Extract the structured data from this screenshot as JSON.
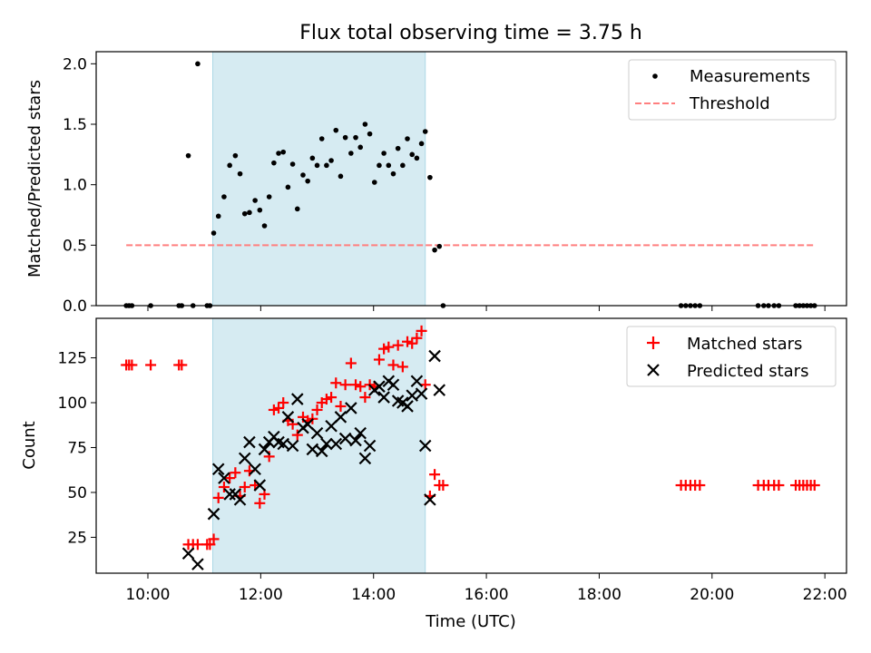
{
  "title": "Flux total observing time = 3.75 h",
  "colors": {
    "shade": "#add8e6",
    "measurement": "#000000",
    "threshold": "#ff7f7f",
    "matched": "#ff0000",
    "predicted": "#000000"
  },
  "chart_data": [
    {
      "type": "scatter",
      "ylabel": "Matched/Predicted stars",
      "xlim": [
        "09:05",
        "22:23"
      ],
      "ylim": [
        0,
        2.1
      ],
      "yticks": [
        0.0,
        0.5,
        1.0,
        1.5,
        2.0
      ],
      "ytick_labels": [
        "0.0",
        "0.5",
        "1.0",
        "1.5",
        "2.0"
      ],
      "grid": false,
      "legend_position": "upper right",
      "shaded_interval": [
        "11:09",
        "14:55"
      ],
      "series": [
        {
          "name": "Measurements",
          "marker": "dot",
          "points": [
            [
              "09:37",
              0
            ],
            [
              "09:40",
              0
            ],
            [
              "09:43",
              0
            ],
            [
              "10:03",
              0
            ],
            [
              "10:33",
              0
            ],
            [
              "10:36",
              0
            ],
            [
              "10:43",
              1.24
            ],
            [
              "10:48",
              0
            ],
            [
              "10:53",
              2.0
            ],
            [
              "11:03",
              0
            ],
            [
              "11:06",
              0
            ],
            [
              "11:10",
              0.6
            ],
            [
              "11:15",
              0.74
            ],
            [
              "11:21",
              0.9
            ],
            [
              "11:27",
              1.16
            ],
            [
              "11:33",
              1.24
            ],
            [
              "11:38",
              1.09
            ],
            [
              "11:43",
              0.76
            ],
            [
              "11:48",
              0.77
            ],
            [
              "11:54",
              0.87
            ],
            [
              "11:59",
              0.79
            ],
            [
              "12:04",
              0.66
            ],
            [
              "12:09",
              0.9
            ],
            [
              "12:14",
              1.18
            ],
            [
              "12:19",
              1.26
            ],
            [
              "12:24",
              1.27
            ],
            [
              "12:29",
              0.98
            ],
            [
              "12:34",
              1.17
            ],
            [
              "12:39",
              0.8
            ],
            [
              "12:45",
              1.08
            ],
            [
              "12:50",
              1.03
            ],
            [
              "12:55",
              1.22
            ],
            [
              "13:00",
              1.16
            ],
            [
              "13:05",
              1.38
            ],
            [
              "13:10",
              1.16
            ],
            [
              "13:15",
              1.2
            ],
            [
              "13:20",
              1.45
            ],
            [
              "13:25",
              1.07
            ],
            [
              "13:30",
              1.39
            ],
            [
              "13:36",
              1.26
            ],
            [
              "13:41",
              1.39
            ],
            [
              "13:46",
              1.31
            ],
            [
              "13:51",
              1.5
            ],
            [
              "13:56",
              1.42
            ],
            [
              "14:01",
              1.02
            ],
            [
              "14:06",
              1.16
            ],
            [
              "14:11",
              1.26
            ],
            [
              "14:16",
              1.16
            ],
            [
              "14:21",
              1.09
            ],
            [
              "14:26",
              1.3
            ],
            [
              "14:31",
              1.16
            ],
            [
              "14:36",
              1.38
            ],
            [
              "14:41",
              1.25
            ],
            [
              "14:46",
              1.22
            ],
            [
              "14:51",
              1.34
            ],
            [
              "14:55",
              1.44
            ],
            [
              "15:00",
              1.06
            ],
            [
              "15:05",
              0.46
            ],
            [
              "15:10",
              0.49
            ],
            [
              "15:14",
              0
            ],
            [
              "19:27",
              0
            ],
            [
              "19:32",
              0
            ],
            [
              "19:37",
              0
            ],
            [
              "19:42",
              0
            ],
            [
              "19:47",
              0
            ],
            [
              "20:49",
              0
            ],
            [
              "20:55",
              0
            ],
            [
              "21:00",
              0
            ],
            [
              "21:06",
              0
            ],
            [
              "21:11",
              0
            ],
            [
              "21:29",
              0
            ],
            [
              "21:33",
              0
            ],
            [
              "21:37",
              0
            ],
            [
              "21:41",
              0
            ],
            [
              "21:45",
              0
            ],
            [
              "21:49",
              0
            ]
          ]
        },
        {
          "name": "Threshold",
          "style": "dashed",
          "points": [
            [
              "09:37",
              0.5
            ],
            [
              "21:49",
              0.5
            ]
          ]
        }
      ]
    },
    {
      "type": "scatter",
      "title": "",
      "xlabel": "Time (UTC)",
      "ylabel": "Count",
      "xlim": [
        "09:05",
        "22:23"
      ],
      "ylim": [
        5,
        147
      ],
      "xticks": [
        "10:00",
        "12:00",
        "14:00",
        "16:00",
        "18:00",
        "20:00",
        "22:00"
      ],
      "yticks": [
        25,
        50,
        75,
        100,
        125
      ],
      "grid": false,
      "legend_position": "upper right",
      "shaded_interval": [
        "11:09",
        "14:55"
      ],
      "series": [
        {
          "name": "Matched stars",
          "marker": "plus",
          "points": [
            [
              "09:37",
              121
            ],
            [
              "09:40",
              121
            ],
            [
              "09:43",
              121
            ],
            [
              "10:03",
              121
            ],
            [
              "10:33",
              121
            ],
            [
              "10:36",
              121
            ],
            [
              "10:43",
              21
            ],
            [
              "10:48",
              21
            ],
            [
              "10:53",
              21
            ],
            [
              "11:03",
              21
            ],
            [
              "11:06",
              21
            ],
            [
              "11:10",
              24
            ],
            [
              "11:15",
              47
            ],
            [
              "11:21",
              53
            ],
            [
              "11:27",
              58
            ],
            [
              "11:33",
              61
            ],
            [
              "11:38",
              48
            ],
            [
              "11:43",
              53
            ],
            [
              "11:48",
              62
            ],
            [
              "11:54",
              54
            ],
            [
              "11:59",
              44
            ],
            [
              "12:04",
              49
            ],
            [
              "12:09",
              70
            ],
            [
              "12:14",
              96
            ],
            [
              "12:19",
              97
            ],
            [
              "12:24",
              100
            ],
            [
              "12:29",
              90
            ],
            [
              "12:34",
              88
            ],
            [
              "12:39",
              82
            ],
            [
              "12:45",
              92
            ],
            [
              "12:50",
              90
            ],
            [
              "12:55",
              91
            ],
            [
              "13:00",
              96
            ],
            [
              "13:05",
              100
            ],
            [
              "13:10",
              102
            ],
            [
              "13:15",
              103
            ],
            [
              "13:20",
              111
            ],
            [
              "13:25",
              98
            ],
            [
              "13:30",
              110
            ],
            [
              "13:36",
              122
            ],
            [
              "13:41",
              110
            ],
            [
              "13:46",
              109
            ],
            [
              "13:51",
              103
            ],
            [
              "13:56",
              110
            ],
            [
              "14:01",
              109
            ],
            [
              "14:06",
              124
            ],
            [
              "14:11",
              130
            ],
            [
              "14:16",
              131
            ],
            [
              "14:21",
              121
            ],
            [
              "14:26",
              132
            ],
            [
              "14:31",
              120
            ],
            [
              "14:36",
              134
            ],
            [
              "14:41",
              133
            ],
            [
              "14:46",
              136
            ],
            [
              "14:51",
              140
            ],
            [
              "14:55",
              110
            ],
            [
              "15:00",
              48
            ],
            [
              "15:05",
              60
            ],
            [
              "15:10",
              54
            ],
            [
              "15:14",
              54
            ],
            [
              "19:27",
              54
            ],
            [
              "19:32",
              54
            ],
            [
              "19:37",
              54
            ],
            [
              "19:42",
              54
            ],
            [
              "19:47",
              54
            ],
            [
              "20:49",
              54
            ],
            [
              "20:55",
              54
            ],
            [
              "21:00",
              54
            ],
            [
              "21:06",
              54
            ],
            [
              "21:11",
              54
            ],
            [
              "21:29",
              54
            ],
            [
              "21:33",
              54
            ],
            [
              "21:37",
              54
            ],
            [
              "21:41",
              54
            ],
            [
              "21:45",
              54
            ],
            [
              "21:49",
              54
            ]
          ]
        },
        {
          "name": "Predicted stars",
          "marker": "x",
          "points": [
            [
              "10:43",
              16
            ],
            [
              "10:53",
              10
            ],
            [
              "11:10",
              38
            ],
            [
              "11:15",
              63
            ],
            [
              "11:21",
              58
            ],
            [
              "11:27",
              49
            ],
            [
              "11:33",
              49
            ],
            [
              "11:38",
              46
            ],
            [
              "11:43",
              69
            ],
            [
              "11:48",
              78
            ],
            [
              "11:54",
              63
            ],
            [
              "11:59",
              54
            ],
            [
              "12:04",
              74
            ],
            [
              "12:09",
              78
            ],
            [
              "12:14",
              81
            ],
            [
              "12:19",
              78
            ],
            [
              "12:24",
              77
            ],
            [
              "12:29",
              92
            ],
            [
              "12:34",
              76
            ],
            [
              "12:39",
              102
            ],
            [
              "12:45",
              86
            ],
            [
              "12:50",
              88
            ],
            [
              "12:55",
              74
            ],
            [
              "13:00",
              83
            ],
            [
              "13:05",
              73
            ],
            [
              "13:10",
              77
            ],
            [
              "13:15",
              87
            ],
            [
              "13:20",
              77
            ],
            [
              "13:25",
              92
            ],
            [
              "13:30",
              80
            ],
            [
              "13:36",
              97
            ],
            [
              "13:41",
              79
            ],
            [
              "13:46",
              83
            ],
            [
              "13:51",
              69
            ],
            [
              "13:56",
              76
            ],
            [
              "14:01",
              107
            ],
            [
              "14:06",
              109
            ],
            [
              "14:11",
              103
            ],
            [
              "14:16",
              112
            ],
            [
              "14:21",
              110
            ],
            [
              "14:26",
              101
            ],
            [
              "14:31",
              100
            ],
            [
              "14:36",
              98
            ],
            [
              "14:41",
              104
            ],
            [
              "14:46",
              112
            ],
            [
              "14:51",
              105
            ],
            [
              "14:55",
              76
            ],
            [
              "15:00",
              46
            ],
            [
              "15:05",
              126
            ],
            [
              "15:10",
              107
            ]
          ]
        }
      ]
    }
  ]
}
